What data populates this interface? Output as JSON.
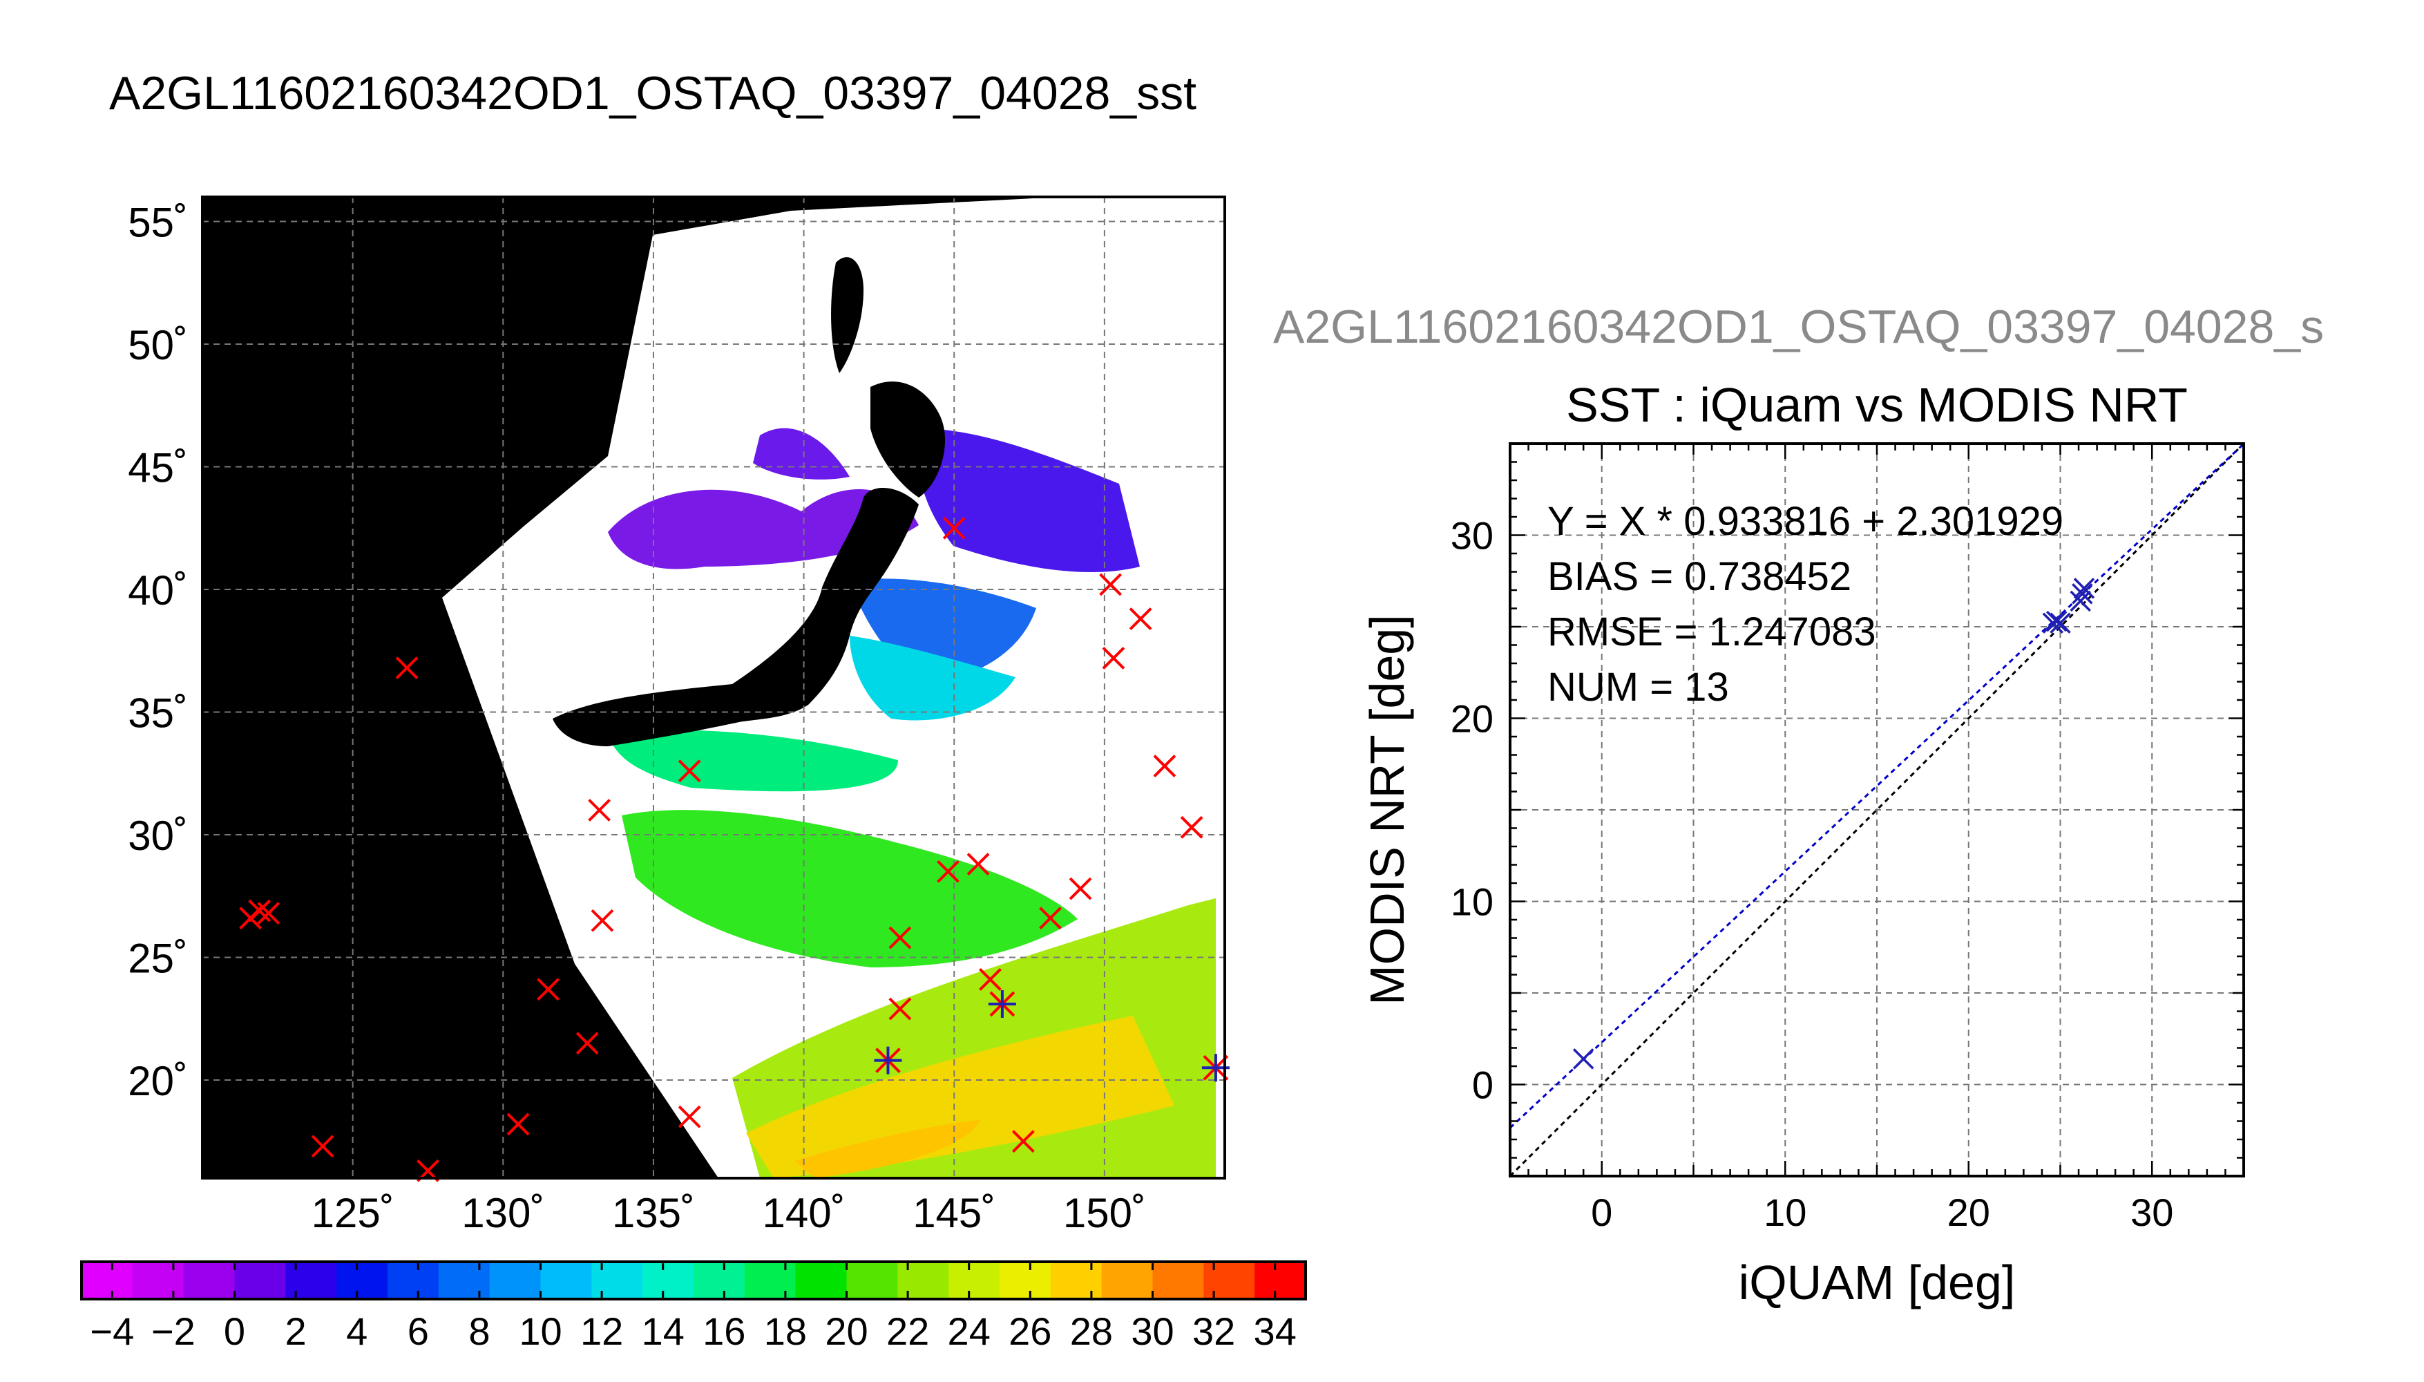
{
  "header": {
    "main_title": "A2GL11602160342OD1_OSTAQ_03397_04028_sst",
    "sub_title": "A2GL11602160342OD1_OSTAQ_03397_04028_s"
  },
  "colors": {
    "match_marker": "#ff0000",
    "valid_marker": "#1f1fb4",
    "regression_line": "#0000cc",
    "identity_line": "#000000",
    "grid": "#777777",
    "land": "#000000",
    "cloud": "#ffffff"
  },
  "map": {
    "lat_ticks": [
      "55˚",
      "50˚",
      "45˚",
      "40˚",
      "35˚",
      "30˚",
      "25˚",
      "20˚"
    ],
    "lon_ticks": [
      "125˚",
      "130˚",
      "135˚",
      "140˚",
      "145˚",
      "150˚"
    ],
    "lon_range": [
      120,
      154
    ],
    "lat_range": [
      16,
      56
    ],
    "colorbar_labels": [
      "−4",
      "−2",
      "0",
      "2",
      "4",
      "6",
      "8",
      "10",
      "12",
      "14",
      "16",
      "18",
      "20",
      "22",
      "24",
      "26",
      "28",
      "30",
      "32",
      "34"
    ],
    "colorbar_range": [
      -5,
      35
    ],
    "colorbar_stops": [
      "#e000ff",
      "#c400f5",
      "#9a00ee",
      "#6a00ea",
      "#2c00ea",
      "#0014f0",
      "#0040f4",
      "#006cf8",
      "#0094fa",
      "#00bcfa",
      "#00dce8",
      "#00f0c8",
      "#00f094",
      "#00ee50",
      "#00e200",
      "#54e400",
      "#98e800",
      "#c8ee00",
      "#ecee00",
      "#ffd000",
      "#ffa400",
      "#ff7800",
      "#ff4400",
      "#ff0000"
    ],
    "match_points": [
      {
        "lon": 121.6,
        "lat": 26.6
      },
      {
        "lon": 121.9,
        "lat": 26.9
      },
      {
        "lon": 122.2,
        "lat": 26.8
      },
      {
        "lon": 126.8,
        "lat": 36.8
      },
      {
        "lon": 127.5,
        "lat": 16.3
      },
      {
        "lon": 124.0,
        "lat": 17.3
      },
      {
        "lon": 130.5,
        "lat": 18.2
      },
      {
        "lon": 131.5,
        "lat": 23.7
      },
      {
        "lon": 132.8,
        "lat": 21.5
      },
      {
        "lon": 133.2,
        "lat": 31.0
      },
      {
        "lon": 133.3,
        "lat": 26.5
      },
      {
        "lon": 136.2,
        "lat": 32.6
      },
      {
        "lon": 136.2,
        "lat": 18.5
      },
      {
        "lon": 143.2,
        "lat": 25.8
      },
      {
        "lon": 143.2,
        "lat": 22.9
      },
      {
        "lon": 144.8,
        "lat": 28.5
      },
      {
        "lon": 145.0,
        "lat": 42.5
      },
      {
        "lon": 145.8,
        "lat": 28.8
      },
      {
        "lon": 146.2,
        "lat": 24.1
      },
      {
        "lon": 147.3,
        "lat": 17.5
      },
      {
        "lon": 148.2,
        "lat": 26.6
      },
      {
        "lon": 149.2,
        "lat": 27.8
      },
      {
        "lon": 150.2,
        "lat": 40.2
      },
      {
        "lon": 150.3,
        "lat": 37.2
      },
      {
        "lon": 151.2,
        "lat": 38.8
      },
      {
        "lon": 152.0,
        "lat": 32.8
      },
      {
        "lon": 152.9,
        "lat": 30.3
      }
    ],
    "valid_points": [
      {
        "lon": 142.8,
        "lat": 20.8
      },
      {
        "lon": 146.6,
        "lat": 23.1
      },
      {
        "lon": 153.7,
        "lat": 20.5
      }
    ]
  },
  "chart_data": {
    "type": "scatter",
    "title": "SST : iQuam vs MODIS NRT",
    "xlabel": "iQUAM [deg]",
    "ylabel": "MODIS NRT [deg]",
    "xlim": [
      -5,
      35
    ],
    "ylim": [
      -5,
      35
    ],
    "xticks": [
      0,
      10,
      20,
      30
    ],
    "yticks": [
      0,
      10,
      20,
      30
    ],
    "grid": true,
    "stats": [
      "Y = X * 0.933816 + 2.301929",
      "BIAS = 0.738452",
      "RMSE = 1.247083",
      "NUM = 13"
    ],
    "regression": {
      "slope": 0.933816,
      "intercept": 2.301929
    },
    "points": [
      {
        "x": -1.0,
        "y": 1.4
      },
      {
        "x": 24.6,
        "y": 25.2
      },
      {
        "x": 24.8,
        "y": 25.3
      },
      {
        "x": 25.0,
        "y": 25.2
      },
      {
        "x": 26.1,
        "y": 26.4
      },
      {
        "x": 26.3,
        "y": 27.1
      },
      {
        "x": 26.2,
        "y": 26.8
      }
    ]
  }
}
